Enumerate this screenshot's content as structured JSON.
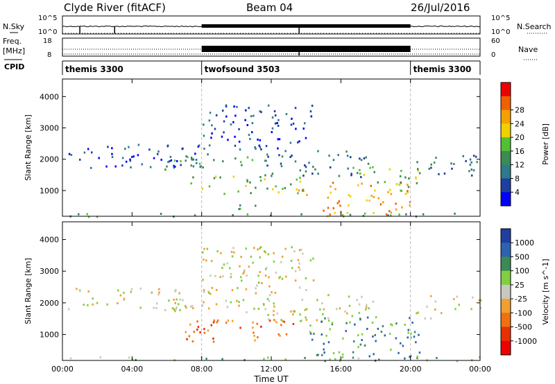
{
  "header": {
    "station": "Clyde River (fitACF)",
    "beam": "Beam 04",
    "date": "26/Jul/2016"
  },
  "strips": {
    "nsky_label": "N.Sky",
    "nsky_ticks": [
      "10^5",
      "10^0"
    ],
    "nsky_right_ticks": [
      "10^5",
      "10^0"
    ],
    "nsearch_label": "N.Search",
    "freq_label_1": "Freq.",
    "freq_label_2": "[MHz]",
    "freq_ticks": [
      "18",
      "8"
    ],
    "nave_label": "Nave",
    "nave_ticks": [
      "60",
      "0"
    ],
    "cpid_label": "CPID",
    "cpid_segments": [
      {
        "label": "themis 3300",
        "start": 0,
        "end": 8
      },
      {
        "label": "twofsound 3503",
        "start": 8,
        "end": 20
      },
      {
        "label": "themis 3300",
        "start": 20,
        "end": 24
      }
    ]
  },
  "chart_data": [
    {
      "type": "heatmap",
      "name": "power",
      "ylabel": "Slant Range [km]",
      "yticks": [
        1000,
        2000,
        3000,
        4000
      ],
      "ylim": [
        180,
        4560
      ],
      "xlim": [
        0,
        24
      ],
      "colorbar": {
        "label": "Power [dB]",
        "ticks": [
          "4",
          "8",
          "12",
          "16",
          "20",
          "24",
          "28"
        ],
        "colors": [
          "#0000ff",
          "#1f3f9f",
          "#2e7a8a",
          "#3d8a55",
          "#52c034",
          "#f0d000",
          "#f5a000",
          "#f06000",
          "#ee0000"
        ]
      },
      "echo_regions": [
        {
          "start": 0.1,
          "end": 24,
          "r0": 190,
          "r1": 320,
          "level": 3
        },
        {
          "start": 0.2,
          "end": 8.5,
          "r0": 1750,
          "r1": 2500,
          "level": 1
        },
        {
          "start": 5.8,
          "end": 11.5,
          "r0": 1700,
          "r1": 2150,
          "level": 3
        },
        {
          "start": 8.0,
          "end": 14.5,
          "r0": 2300,
          "r1": 3800,
          "level": 1
        },
        {
          "start": 7.0,
          "end": 14.0,
          "r0": 900,
          "r1": 1500,
          "level": 4
        },
        {
          "start": 11.5,
          "end": 18.0,
          "r0": 1400,
          "r1": 2300,
          "level": 2
        },
        {
          "start": 13.5,
          "end": 20.0,
          "r0": 200,
          "r1": 1300,
          "level": 6
        },
        {
          "start": 16.5,
          "end": 20.5,
          "r0": 1000,
          "r1": 1800,
          "level": 4
        },
        {
          "start": 20.3,
          "end": 24.0,
          "r0": 1500,
          "r1": 2250,
          "level": 2
        },
        {
          "start": 9.5,
          "end": 11.5,
          "r0": 300,
          "r1": 600,
          "level": 3
        }
      ]
    },
    {
      "type": "heatmap",
      "name": "velocity",
      "ylabel": "Slant Range [km]",
      "xlabel": "Time UT",
      "xticks": [
        "00:00",
        "04:00",
        "08:00",
        "12:00",
        "16:00",
        "20:00",
        "00:00"
      ],
      "yticks": [
        1000,
        2000,
        3000,
        4000
      ],
      "ylim": [
        180,
        4560
      ],
      "xlim": [
        0,
        24
      ],
      "colorbar": {
        "label": "Velocity [m s^-1]",
        "ticks": [
          "1000",
          "500",
          "100",
          "25",
          "-25",
          "-100",
          "-500",
          "-1000"
        ],
        "colors": [
          "#1f3fa0",
          "#2e62b0",
          "#3b8a55",
          "#7fd040",
          "#c8c8c0",
          "#f0a030",
          "#f07010",
          "#e83000",
          "#ee0000"
        ]
      },
      "echo_regions": [
        {
          "start": 0.1,
          "end": 24,
          "r0": 190,
          "r1": 330,
          "level": 3
        },
        {
          "start": 0.2,
          "end": 8.5,
          "r0": 1800,
          "r1": 2500,
          "level": 4
        },
        {
          "start": 5.8,
          "end": 11.5,
          "r0": 1700,
          "r1": 2150,
          "level": 4
        },
        {
          "start": 8.0,
          "end": 14.5,
          "r0": 2300,
          "r1": 3800,
          "level": 4
        },
        {
          "start": 7.0,
          "end": 13.5,
          "r0": 800,
          "r1": 1500,
          "level": 6
        },
        {
          "start": 11.5,
          "end": 18.0,
          "r0": 1400,
          "r1": 2300,
          "level": 4
        },
        {
          "start": 14.0,
          "end": 20.5,
          "r0": 200,
          "r1": 1600,
          "level": 2
        },
        {
          "start": 20.3,
          "end": 24.0,
          "r0": 1500,
          "r1": 2250,
          "level": 4
        }
      ]
    }
  ]
}
